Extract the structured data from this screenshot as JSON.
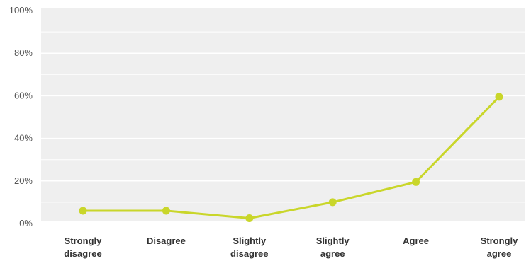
{
  "chart_data": {
    "type": "line",
    "title": "",
    "xlabel": "",
    "ylabel": "",
    "categories": [
      [
        "Strongly",
        "disagree"
      ],
      [
        "Disagree"
      ],
      [
        "Slightly",
        "disagree"
      ],
      [
        "Slightly",
        "agree"
      ],
      [
        "Agree"
      ],
      [
        "Strongly",
        "agree"
      ]
    ],
    "series": [
      {
        "values": [
          6,
          6,
          2.5,
          10,
          19.5,
          59.5
        ],
        "color": "#c9d62a"
      }
    ],
    "yticks": [
      "0%",
      "20%",
      "40%",
      "60%",
      "80%",
      "100%"
    ],
    "ylim": [
      0,
      100
    ],
    "grid": true,
    "plot_background": "#efefef",
    "grid_color": "#ffffff"
  }
}
